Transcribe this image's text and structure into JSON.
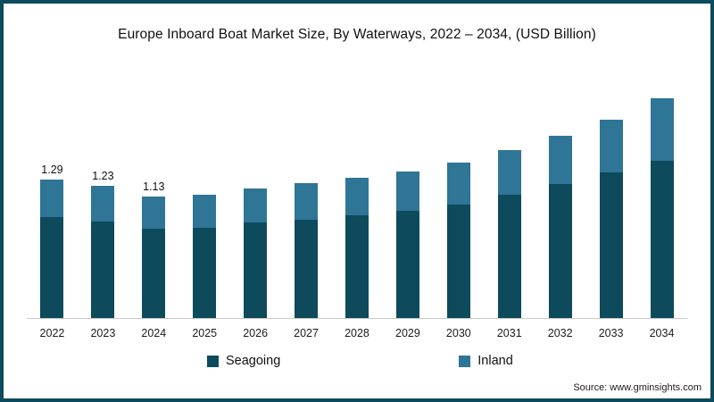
{
  "title": "Europe Inboard Boat Market Size, By Waterways, 2022 – 2034, (USD Billion)",
  "source": "Source: www.gminsights.com",
  "frame": {
    "border_color": "#0d4a5e",
    "background": "#ffffff"
  },
  "legend": [
    {
      "label": "Seagoing",
      "color": "#0d4a5c"
    },
    {
      "label": "Inland",
      "color": "#2e7596"
    }
  ],
  "chart_data": {
    "type": "bar",
    "stacked": true,
    "title": "Europe Inboard Boat Market Size, By Waterways, 2022 – 2034, (USD Billion)",
    "unit": "USD Billion",
    "xlabel": "",
    "ylabel": "",
    "ylim": [
      0,
      2.2
    ],
    "grid": false,
    "legend_position": "bottom",
    "categories": [
      "2022",
      "2023",
      "2024",
      "2025",
      "2026",
      "2027",
      "2028",
      "2029",
      "2030",
      "2031",
      "2032",
      "2033",
      "2034"
    ],
    "series": [
      {
        "name": "Seagoing",
        "color": "#0d4a5c",
        "values": [
          0.94,
          0.9,
          0.83,
          0.84,
          0.89,
          0.92,
          0.96,
          1.0,
          1.06,
          1.15,
          1.25,
          1.36,
          1.47
        ]
      },
      {
        "name": "Inland",
        "color": "#2e7596",
        "values": [
          0.35,
          0.33,
          0.3,
          0.31,
          0.32,
          0.34,
          0.35,
          0.37,
          0.39,
          0.42,
          0.45,
          0.49,
          0.58
        ]
      }
    ],
    "totals": [
      1.29,
      1.23,
      1.13,
      1.15,
      1.21,
      1.26,
      1.31,
      1.37,
      1.45,
      1.57,
      1.7,
      1.85,
      2.05
    ],
    "total_labels": [
      "1.29",
      "1.23",
      "1.13",
      "",
      "",
      "",
      "",
      "",
      "",
      "",
      "",
      "",
      ""
    ]
  }
}
